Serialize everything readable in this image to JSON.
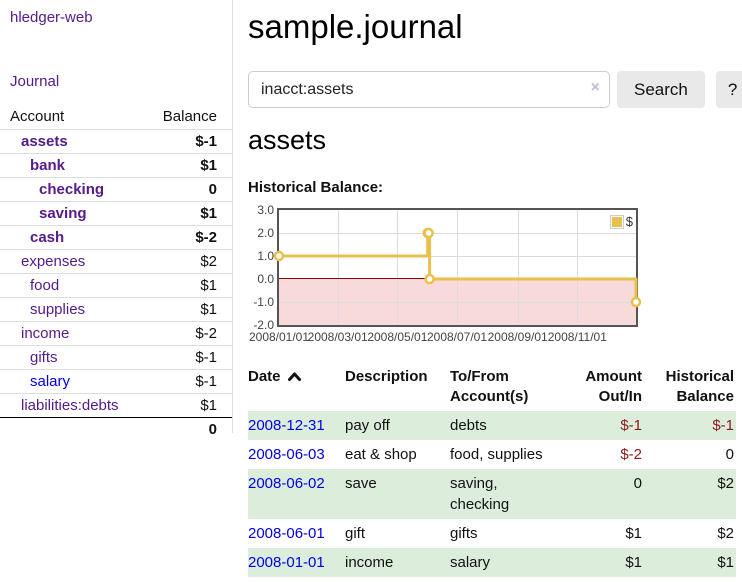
{
  "app": {
    "title": "hledger-web"
  },
  "sidebar": {
    "journal_label": "Journal",
    "accounts": {
      "header_account": "Account",
      "header_balance": "Balance",
      "rows": [
        {
          "name": "assets",
          "balance": "$-1",
          "indent": 0,
          "emphasis": true,
          "balance_style": "negative-strong"
        },
        {
          "name": "bank",
          "balance": "$1",
          "indent": 1,
          "emphasis": true,
          "balance_style": "normal"
        },
        {
          "name": "checking",
          "balance": "0",
          "indent": 2,
          "emphasis": true,
          "balance_style": "normal"
        },
        {
          "name": "saving",
          "balance": "$1",
          "indent": 2,
          "emphasis": true,
          "balance_style": "normal"
        },
        {
          "name": "cash",
          "balance": "$-2",
          "indent": 1,
          "emphasis": true,
          "balance_style": "negative-strong"
        },
        {
          "name": "expenses",
          "balance": "$2",
          "indent": 0,
          "emphasis": false,
          "balance_style": "normal"
        },
        {
          "name": "food",
          "balance": "$1",
          "indent": 1,
          "emphasis": false,
          "balance_style": "normal"
        },
        {
          "name": "supplies",
          "balance": "$1",
          "indent": 1,
          "emphasis": false,
          "balance_style": "normal"
        },
        {
          "name": "income",
          "balance": "$-2",
          "indent": 0,
          "emphasis": false,
          "balance_style": "negative-muted"
        },
        {
          "name": "gifts",
          "balance": "$-1",
          "indent": 1,
          "emphasis": false,
          "balance_style": "negative-muted"
        },
        {
          "name": "salary",
          "balance": "$-1",
          "indent": 1,
          "emphasis": false,
          "balance_style": "negative-muted",
          "link_color": "blue"
        },
        {
          "name": "liabilities:debts",
          "balance": "$1",
          "indent": 0,
          "emphasis": false,
          "balance_style": "normal"
        }
      ],
      "total": "0"
    }
  },
  "main": {
    "title": "sample.journal",
    "search": {
      "value": "inacct:assets",
      "clear_icon": "×",
      "button_label": "Search",
      "help_label": "?"
    },
    "account_heading": "assets",
    "chart_label": "Historical Balance:"
  },
  "chart_data": {
    "type": "line",
    "title": "Historical Balance",
    "step": true,
    "legend": "$",
    "legend_position": "top-right",
    "xlim": [
      "2008-01-01",
      "2008-12-31"
    ],
    "ylim": [
      -2.0,
      3.0
    ],
    "yticks": [
      3.0,
      2.0,
      1.0,
      0.0,
      -1.0,
      -2.0
    ],
    "ytick_labels": [
      "3.0",
      "2.0",
      "1.0",
      "0.0",
      "-1.0",
      "-2.0"
    ],
    "xticks": [
      "2008-01-01",
      "2008-03-01",
      "2008-05-01",
      "2008-07-01",
      "2008-09-01",
      "2008-11-01"
    ],
    "xtick_labels": [
      "2008/01/01",
      "2008/03/01",
      "2008/05/01",
      "2008/07/01",
      "2008/09/01",
      "2008/11/01"
    ],
    "series": [
      {
        "name": "$",
        "color": "#e7c14b",
        "marker": "open-circle",
        "points": [
          {
            "date": "2008-01-01",
            "value": 1
          },
          {
            "date": "2008-06-01",
            "value": 2
          },
          {
            "date": "2008-06-02",
            "value": 2
          },
          {
            "date": "2008-06-03",
            "value": 0
          },
          {
            "date": "2008-12-31",
            "value": -1
          }
        ]
      }
    ],
    "negative_region": {
      "fill": "#f9dada",
      "zero_line_color": "#8b0000"
    },
    "grid": true
  },
  "register": {
    "headers": [
      {
        "line1": "Date",
        "line2": "",
        "sorted": "ascending"
      },
      {
        "line1": "Description",
        "line2": ""
      },
      {
        "line1": "To/From",
        "line2": "Account(s)"
      },
      {
        "line1": "Amount",
        "line2": "Out/In"
      },
      {
        "line1": "Historical",
        "line2": "Balance"
      }
    ],
    "rows": [
      {
        "date": "2008-12-31",
        "description": "pay off",
        "accounts": "debts",
        "amount": "$-1",
        "balance": "$-1"
      },
      {
        "date": "2008-06-03",
        "description": "eat & shop",
        "accounts": "food, supplies",
        "amount": "$-2",
        "balance": "0"
      },
      {
        "date": "2008-06-02",
        "description": "save",
        "accounts": "saving, checking",
        "amount": "0",
        "balance": "$2"
      },
      {
        "date": "2008-06-01",
        "description": "gift",
        "accounts": "gifts",
        "amount": "$1",
        "balance": "$2"
      },
      {
        "date": "2008-01-01",
        "description": "income",
        "accounts": "salary",
        "amount": "$1",
        "balance": "$1"
      }
    ]
  },
  "colors": {
    "link_purple": "#551a8b",
    "link_blue": "#0000e8",
    "negative_strong": "#8b1a1a",
    "negative_muted": "#bf6b6f",
    "row_stripe_green": "#dceddc",
    "chart_line_gold": "#e7c14b",
    "chart_negative_fill": "#f9dada",
    "chart_zero_line": "#8b0000",
    "button_background": "#e9e9e9"
  }
}
